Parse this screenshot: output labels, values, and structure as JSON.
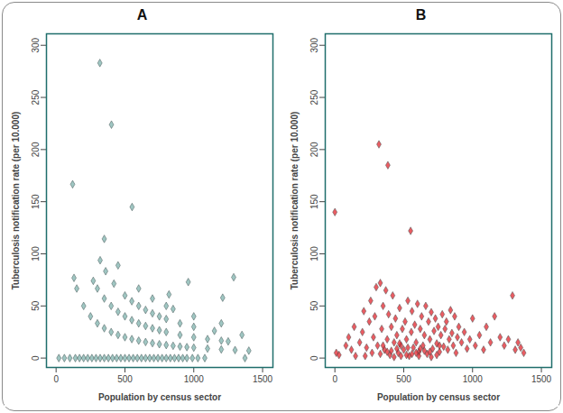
{
  "chart_data": [
    {
      "type": "scatter",
      "title": "A",
      "x_label": "Population by census sector",
      "y_label": "Tuberculosis notification rate (per 10.000)",
      "xlim": [
        -70,
        1575
      ],
      "ylim": [
        -9,
        311
      ],
      "xticks": [
        0,
        500,
        1000,
        1500
      ],
      "yticks": [
        0,
        50,
        100,
        150,
        200,
        250,
        300
      ],
      "color": "#7fb3ae",
      "marker": "diamond",
      "x": [
        20,
        60,
        100,
        140,
        170,
        200,
        230,
        260,
        290,
        320,
        350,
        380,
        410,
        440,
        470,
        500,
        530,
        560,
        590,
        620,
        650,
        680,
        710,
        740,
        770,
        800,
        830,
        860,
        890,
        920,
        950,
        990,
        1030,
        1080,
        1372,
        130,
        150,
        200,
        250,
        300,
        350,
        400,
        450,
        500,
        550,
        600,
        650,
        700,
        750,
        800,
        850,
        900,
        950,
        1000,
        1100,
        1200,
        1300,
        1400,
        270,
        300,
        350,
        400,
        450,
        500,
        550,
        600,
        650,
        700,
        750,
        800,
        900,
        1000,
        1100,
        1200,
        1250,
        320,
        360,
        420,
        500,
        550,
        600,
        650,
        700,
        750,
        800,
        900,
        1000,
        1150,
        1350,
        350,
        450,
        600,
        700,
        800,
        850,
        1000,
        1200,
        820,
        1210,
        1290,
        960,
        120,
        318,
        402,
        552
      ],
      "values": [
        0,
        0,
        0,
        0,
        0,
        0,
        0,
        0,
        0,
        0,
        0,
        0,
        0,
        0,
        0,
        0,
        0,
        0,
        0,
        0,
        0,
        0,
        0,
        0,
        0,
        0,
        0,
        0,
        0,
        0,
        0,
        0,
        0,
        0,
        0,
        76.9,
        66.7,
        50.0,
        40.0,
        33.3,
        28.6,
        25.0,
        22.2,
        20.0,
        18.2,
        16.7,
        15.4,
        14.3,
        13.3,
        12.5,
        11.8,
        11.1,
        10.5,
        10.0,
        9.1,
        8.3,
        7.7,
        7.1,
        74.1,
        66.7,
        57.1,
        50.0,
        44.4,
        40.0,
        36.4,
        33.3,
        30.8,
        28.6,
        26.7,
        25.0,
        22.2,
        20.0,
        18.2,
        16.7,
        16.0,
        93.8,
        83.3,
        71.4,
        60.0,
        54.5,
        50.0,
        46.2,
        42.9,
        40.0,
        37.5,
        33.3,
        30.0,
        26.1,
        22.2,
        114.3,
        88.9,
        66.7,
        57.1,
        50.0,
        47.1,
        40.0,
        33.3,
        61.0,
        57.9,
        77.5,
        72.9,
        166.7,
        283.0,
        223.9,
        144.9
      ]
    },
    {
      "type": "scatter",
      "title": "B",
      "x_label": "Population by census sector",
      "y_label": "Tuberculosis notification rate (per 10.000)",
      "xlim": [
        -70,
        1575
      ],
      "ylim": [
        -9,
        311
      ],
      "xticks": [
        0,
        500,
        1000,
        1500
      ],
      "yticks": [
        0,
        50,
        100,
        150,
        200,
        250,
        300
      ],
      "color": "#e3262d",
      "marker": "diamond",
      "x": [
        0,
        10,
        30,
        80,
        100,
        120,
        140,
        150,
        180,
        200,
        210,
        230,
        250,
        260,
        270,
        280,
        290,
        300,
        310,
        320,
        330,
        340,
        350,
        360,
        370,
        380,
        385,
        390,
        400,
        410,
        420,
        430,
        440,
        450,
        460,
        470,
        480,
        490,
        500,
        510,
        520,
        530,
        540,
        550,
        555,
        560,
        570,
        580,
        590,
        600,
        610,
        620,
        630,
        640,
        650,
        660,
        670,
        680,
        690,
        700,
        710,
        720,
        730,
        740,
        750,
        760,
        770,
        780,
        790,
        800,
        810,
        820,
        830,
        840,
        850,
        860,
        870,
        880,
        890,
        900,
        920,
        940,
        960,
        980,
        1000,
        1020,
        1050,
        1080,
        1100,
        1130,
        1160,
        1200,
        1230,
        1260,
        1290,
        1310,
        1330,
        1350,
        1372,
        220,
        330,
        430,
        520,
        610,
        700,
        450,
        380,
        560,
        650,
        740,
        480,
        530,
        590,
        350,
        410,
        470,
        620,
        690,
        760
      ],
      "values": [
        140,
        5,
        3,
        12,
        20,
        8,
        30,
        2,
        15,
        25,
        45,
        10,
        35,
        55,
        5,
        20,
        40,
        68,
        12,
        205,
        72,
        28,
        50,
        8,
        65,
        18,
        185,
        42,
        3,
        30,
        60,
        15,
        38,
        22,
        5,
        48,
        12,
        28,
        8,
        35,
        18,
        55,
        2,
        122,
        25,
        45,
        10,
        32,
        15,
        52,
        6,
        28,
        40,
        12,
        22,
        50,
        4,
        35,
        18,
        44,
        9,
        26,
        38,
        14,
        30,
        6,
        22,
        42,
        11,
        28,
        35,
        8,
        18,
        46,
        24,
        12,
        40,
        5,
        20,
        30,
        15,
        25,
        9,
        18,
        38,
        12,
        22,
        8,
        30,
        15,
        40,
        20,
        12,
        18,
        60,
        8,
        15,
        10,
        5,
        2,
        4,
        1,
        3,
        2,
        1,
        9,
        6,
        4,
        7,
        3,
        2,
        10,
        5,
        12,
        7,
        14,
        9,
        6,
        12
      ]
    }
  ]
}
